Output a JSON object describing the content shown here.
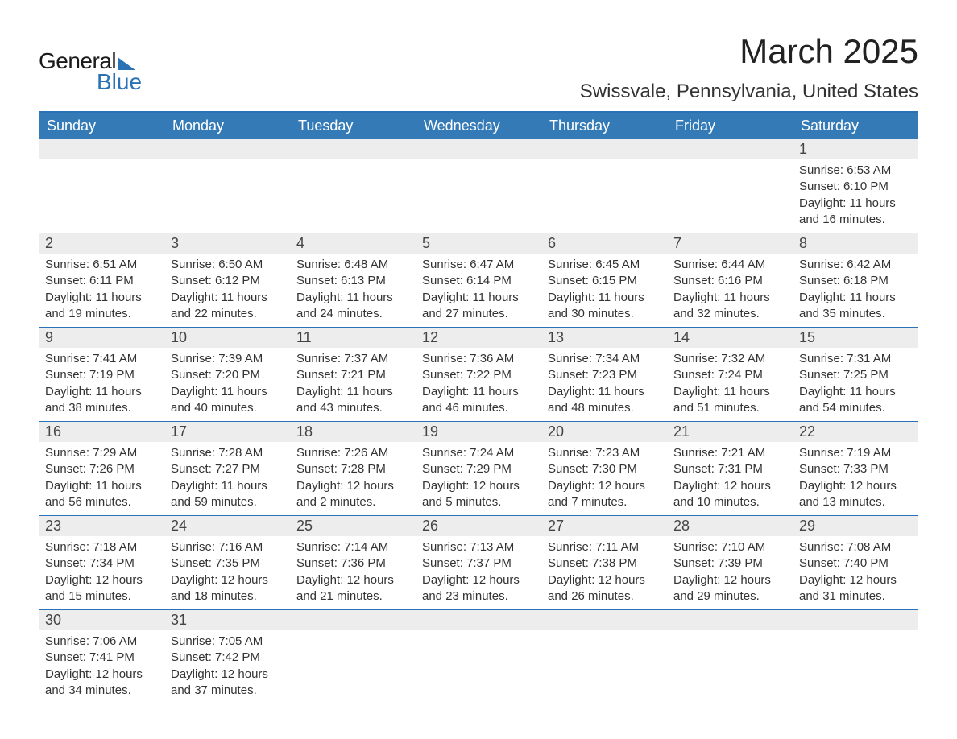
{
  "brand": {
    "part1": "General",
    "part2": "Blue"
  },
  "title": "March 2025",
  "location": "Swissvale, Pennsylvania, United States",
  "colors": {
    "header_bg": "#337ab7",
    "header_text": "#ffffff",
    "row_alt_bg": "#ededed",
    "border": "#2a72b5",
    "text": "#333333",
    "brand_blue": "#2a72b5"
  },
  "weekdays": [
    "Sunday",
    "Monday",
    "Tuesday",
    "Wednesday",
    "Thursday",
    "Friday",
    "Saturday"
  ],
  "weeks": [
    [
      null,
      null,
      null,
      null,
      null,
      null,
      {
        "d": "1",
        "sr": "Sunrise: 6:53 AM",
        "ss": "Sunset: 6:10 PM",
        "dl1": "Daylight: 11 hours",
        "dl2": "and 16 minutes."
      }
    ],
    [
      {
        "d": "2",
        "sr": "Sunrise: 6:51 AM",
        "ss": "Sunset: 6:11 PM",
        "dl1": "Daylight: 11 hours",
        "dl2": "and 19 minutes."
      },
      {
        "d": "3",
        "sr": "Sunrise: 6:50 AM",
        "ss": "Sunset: 6:12 PM",
        "dl1": "Daylight: 11 hours",
        "dl2": "and 22 minutes."
      },
      {
        "d": "4",
        "sr": "Sunrise: 6:48 AM",
        "ss": "Sunset: 6:13 PM",
        "dl1": "Daylight: 11 hours",
        "dl2": "and 24 minutes."
      },
      {
        "d": "5",
        "sr": "Sunrise: 6:47 AM",
        "ss": "Sunset: 6:14 PM",
        "dl1": "Daylight: 11 hours",
        "dl2": "and 27 minutes."
      },
      {
        "d": "6",
        "sr": "Sunrise: 6:45 AM",
        "ss": "Sunset: 6:15 PM",
        "dl1": "Daylight: 11 hours",
        "dl2": "and 30 minutes."
      },
      {
        "d": "7",
        "sr": "Sunrise: 6:44 AM",
        "ss": "Sunset: 6:16 PM",
        "dl1": "Daylight: 11 hours",
        "dl2": "and 32 minutes."
      },
      {
        "d": "8",
        "sr": "Sunrise: 6:42 AM",
        "ss": "Sunset: 6:18 PM",
        "dl1": "Daylight: 11 hours",
        "dl2": "and 35 minutes."
      }
    ],
    [
      {
        "d": "9",
        "sr": "Sunrise: 7:41 AM",
        "ss": "Sunset: 7:19 PM",
        "dl1": "Daylight: 11 hours",
        "dl2": "and 38 minutes."
      },
      {
        "d": "10",
        "sr": "Sunrise: 7:39 AM",
        "ss": "Sunset: 7:20 PM",
        "dl1": "Daylight: 11 hours",
        "dl2": "and 40 minutes."
      },
      {
        "d": "11",
        "sr": "Sunrise: 7:37 AM",
        "ss": "Sunset: 7:21 PM",
        "dl1": "Daylight: 11 hours",
        "dl2": "and 43 minutes."
      },
      {
        "d": "12",
        "sr": "Sunrise: 7:36 AM",
        "ss": "Sunset: 7:22 PM",
        "dl1": "Daylight: 11 hours",
        "dl2": "and 46 minutes."
      },
      {
        "d": "13",
        "sr": "Sunrise: 7:34 AM",
        "ss": "Sunset: 7:23 PM",
        "dl1": "Daylight: 11 hours",
        "dl2": "and 48 minutes."
      },
      {
        "d": "14",
        "sr": "Sunrise: 7:32 AM",
        "ss": "Sunset: 7:24 PM",
        "dl1": "Daylight: 11 hours",
        "dl2": "and 51 minutes."
      },
      {
        "d": "15",
        "sr": "Sunrise: 7:31 AM",
        "ss": "Sunset: 7:25 PM",
        "dl1": "Daylight: 11 hours",
        "dl2": "and 54 minutes."
      }
    ],
    [
      {
        "d": "16",
        "sr": "Sunrise: 7:29 AM",
        "ss": "Sunset: 7:26 PM",
        "dl1": "Daylight: 11 hours",
        "dl2": "and 56 minutes."
      },
      {
        "d": "17",
        "sr": "Sunrise: 7:28 AM",
        "ss": "Sunset: 7:27 PM",
        "dl1": "Daylight: 11 hours",
        "dl2": "and 59 minutes."
      },
      {
        "d": "18",
        "sr": "Sunrise: 7:26 AM",
        "ss": "Sunset: 7:28 PM",
        "dl1": "Daylight: 12 hours",
        "dl2": "and 2 minutes."
      },
      {
        "d": "19",
        "sr": "Sunrise: 7:24 AM",
        "ss": "Sunset: 7:29 PM",
        "dl1": "Daylight: 12 hours",
        "dl2": "and 5 minutes."
      },
      {
        "d": "20",
        "sr": "Sunrise: 7:23 AM",
        "ss": "Sunset: 7:30 PM",
        "dl1": "Daylight: 12 hours",
        "dl2": "and 7 minutes."
      },
      {
        "d": "21",
        "sr": "Sunrise: 7:21 AM",
        "ss": "Sunset: 7:31 PM",
        "dl1": "Daylight: 12 hours",
        "dl2": "and 10 minutes."
      },
      {
        "d": "22",
        "sr": "Sunrise: 7:19 AM",
        "ss": "Sunset: 7:33 PM",
        "dl1": "Daylight: 12 hours",
        "dl2": "and 13 minutes."
      }
    ],
    [
      {
        "d": "23",
        "sr": "Sunrise: 7:18 AM",
        "ss": "Sunset: 7:34 PM",
        "dl1": "Daylight: 12 hours",
        "dl2": "and 15 minutes."
      },
      {
        "d": "24",
        "sr": "Sunrise: 7:16 AM",
        "ss": "Sunset: 7:35 PM",
        "dl1": "Daylight: 12 hours",
        "dl2": "and 18 minutes."
      },
      {
        "d": "25",
        "sr": "Sunrise: 7:14 AM",
        "ss": "Sunset: 7:36 PM",
        "dl1": "Daylight: 12 hours",
        "dl2": "and 21 minutes."
      },
      {
        "d": "26",
        "sr": "Sunrise: 7:13 AM",
        "ss": "Sunset: 7:37 PM",
        "dl1": "Daylight: 12 hours",
        "dl2": "and 23 minutes."
      },
      {
        "d": "27",
        "sr": "Sunrise: 7:11 AM",
        "ss": "Sunset: 7:38 PM",
        "dl1": "Daylight: 12 hours",
        "dl2": "and 26 minutes."
      },
      {
        "d": "28",
        "sr": "Sunrise: 7:10 AM",
        "ss": "Sunset: 7:39 PM",
        "dl1": "Daylight: 12 hours",
        "dl2": "and 29 minutes."
      },
      {
        "d": "29",
        "sr": "Sunrise: 7:08 AM",
        "ss": "Sunset: 7:40 PM",
        "dl1": "Daylight: 12 hours",
        "dl2": "and 31 minutes."
      }
    ],
    [
      {
        "d": "30",
        "sr": "Sunrise: 7:06 AM",
        "ss": "Sunset: 7:41 PM",
        "dl1": "Daylight: 12 hours",
        "dl2": "and 34 minutes."
      },
      {
        "d": "31",
        "sr": "Sunrise: 7:05 AM",
        "ss": "Sunset: 7:42 PM",
        "dl1": "Daylight: 12 hours",
        "dl2": "and 37 minutes."
      },
      null,
      null,
      null,
      null,
      null
    ]
  ]
}
